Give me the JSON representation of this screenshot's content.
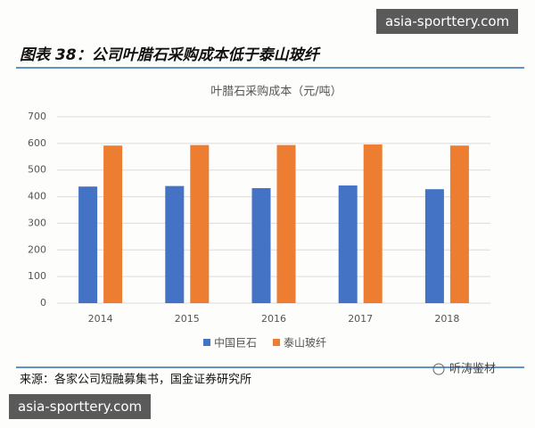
{
  "header": {
    "title": "图表 38：公司叶腊石采购成本低于泰山玻纤"
  },
  "watermark": "asia-sporttery.com",
  "footer": {
    "source": "来源：各家公司短融募集书，国金证券研究所",
    "logo": "听涛鉴材"
  },
  "chart_data": {
    "type": "bar",
    "title": "叶腊石采购成本（元/吨）",
    "categories": [
      "2014",
      "2015",
      "2016",
      "2017",
      "2018"
    ],
    "series": [
      {
        "name": "中国巨石",
        "color": "#4472c4",
        "values": [
          438,
          440,
          432,
          442,
          428
        ]
      },
      {
        "name": "泰山玻纤",
        "color": "#ed7d31",
        "values": [
          592,
          594,
          594,
          596,
          592
        ]
      }
    ],
    "ylim": [
      0,
      700
    ],
    "yticks": [
      0,
      100,
      200,
      300,
      400,
      500,
      600,
      700
    ],
    "grid": true,
    "legend": "bottom"
  }
}
